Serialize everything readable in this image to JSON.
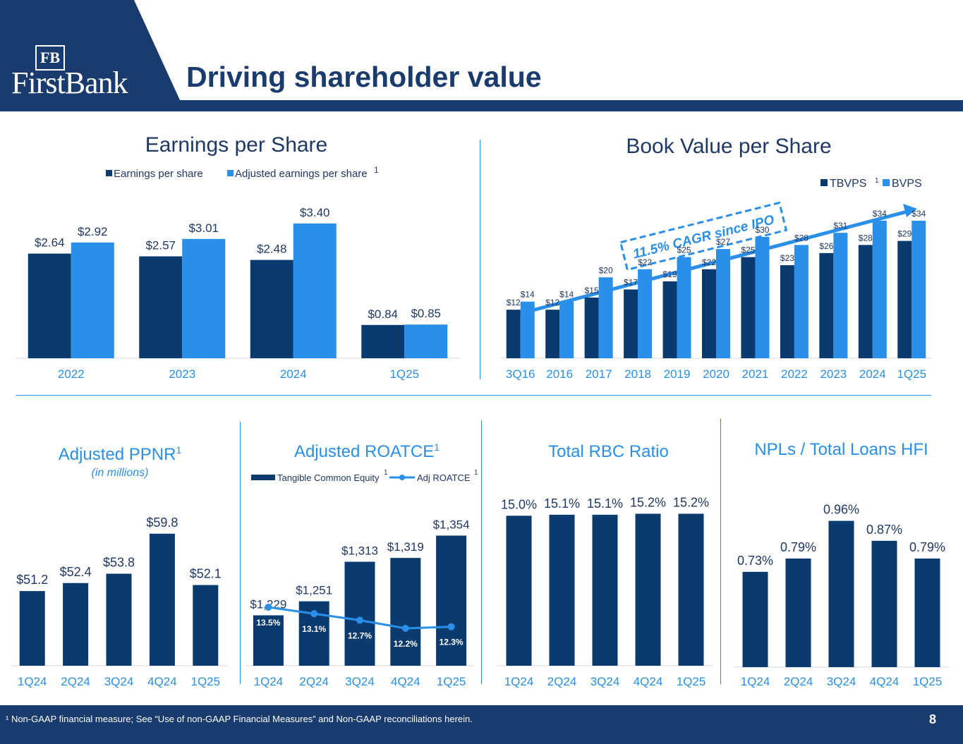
{
  "header": {
    "logo_monogram": "FB",
    "logo_text": "FirstBank",
    "title": "Driving shareholder value"
  },
  "colors": {
    "navy": "#0b3a6e",
    "bright": "#2a8fe8",
    "header_navy": "#1a3b6e",
    "axis_label": "#2a8fe8"
  },
  "footer": {
    "footnote": "¹ Non-GAAP financial measure; See “Use of non-GAAP Financial Measures” and Non-GAAP reconciliations herein.",
    "page_number": "8"
  },
  "chart_data": [
    {
      "id": "eps",
      "type": "bar",
      "title": "Earnings per Share",
      "categories": [
        "2022",
        "2023",
        "2024",
        "1Q25"
      ],
      "series": [
        {
          "name": "Earnings per share",
          "values": [
            2.64,
            2.57,
            2.48,
            0.84
          ],
          "labels": [
            "$2.64",
            "$2.57",
            "$2.48",
            "$0.84"
          ]
        },
        {
          "name": "Adjusted earnings per share",
          "values": [
            2.92,
            3.01,
            3.4,
            0.85
          ],
          "labels": [
            "$2.92",
            "$3.01",
            "$3.40",
            "$0.85"
          ]
        }
      ],
      "legend_superscript": "1",
      "ylim": [
        0,
        3.7
      ]
    },
    {
      "id": "bvps",
      "type": "bar",
      "title": "Book Value per Share",
      "categories": [
        "3Q16",
        "2016",
        "2017",
        "2018",
        "2019",
        "2020",
        "2021",
        "2022",
        "2023",
        "2024",
        "1Q25"
      ],
      "series": [
        {
          "name": "TBVPS",
          "superscript": "1",
          "values": [
            12,
            12,
            15,
            17,
            19,
            22,
            25,
            23,
            26,
            28,
            29
          ],
          "labels": [
            "$12",
            "$12",
            "$15",
            "$17",
            "$19",
            "$22",
            "$25",
            "$23",
            "$26",
            "$28",
            "$29"
          ]
        },
        {
          "name": "BVPS",
          "values": [
            14,
            14,
            20,
            22,
            25,
            27,
            30,
            28,
            31,
            34,
            34
          ],
          "labels": [
            "$14",
            "$14",
            "$20",
            "$22",
            "$25",
            "$27",
            "$30",
            "$28",
            "$31",
            "$34",
            "$34"
          ]
        }
      ],
      "annotation": "11.5% CAGR since IPO",
      "ylim": [
        0,
        38
      ]
    },
    {
      "id": "ppnr",
      "type": "bar",
      "title": "Adjusted PPNR",
      "title_superscript": "1",
      "subtitle": "(in millions)",
      "categories": [
        "1Q24",
        "2Q24",
        "3Q24",
        "4Q24",
        "1Q25"
      ],
      "values": [
        51.2,
        52.4,
        53.8,
        59.8,
        52.1
      ],
      "labels": [
        "$51.2",
        "$52.4",
        "$53.8",
        "$59.8",
        "$52.1"
      ],
      "ylim": [
        40,
        62
      ]
    },
    {
      "id": "roatce",
      "type": "bar",
      "title": "Adjusted ROATCE",
      "title_superscript": "1",
      "categories": [
        "1Q24",
        "2Q24",
        "3Q24",
        "4Q24",
        "1Q25"
      ],
      "series": [
        {
          "name": "Tangible Common Equity",
          "superscript": "1",
          "values": [
            1229,
            1251,
            1313,
            1319,
            1354
          ],
          "labels": [
            "$1,229",
            "$1,251",
            "$1,313",
            "$1,319",
            "$1,354"
          ]
        },
        {
          "name": "Adj ROATCE",
          "superscript": "1",
          "values": [
            13.5,
            13.1,
            12.7,
            12.2,
            12.3
          ],
          "labels": [
            "13.5%",
            "13.1%",
            "12.7%",
            "12.2%",
            "12.3%"
          ]
        }
      ],
      "ylim": [
        1150,
        1370
      ]
    },
    {
      "id": "rbc",
      "type": "bar",
      "title": "Total RBC Ratio",
      "categories": [
        "1Q24",
        "2Q24",
        "3Q24",
        "4Q24",
        "1Q25"
      ],
      "values": [
        15.0,
        15.1,
        15.1,
        15.2,
        15.2
      ],
      "labels": [
        "15.0%",
        "15.1%",
        "15.1%",
        "15.2%",
        "15.2%"
      ],
      "ylim": [
        0,
        15.8
      ]
    },
    {
      "id": "npl",
      "type": "bar",
      "title": "NPLs / Total Loans HFI",
      "categories": [
        "1Q24",
        "2Q24",
        "3Q24",
        "4Q24",
        "1Q25"
      ],
      "values": [
        0.73,
        0.79,
        0.96,
        0.87,
        0.79
      ],
      "labels": [
        "0.73%",
        "0.79%",
        "0.96%",
        "0.87%",
        "0.79%"
      ],
      "ylim": [
        0.3,
        1.0
      ]
    }
  ]
}
